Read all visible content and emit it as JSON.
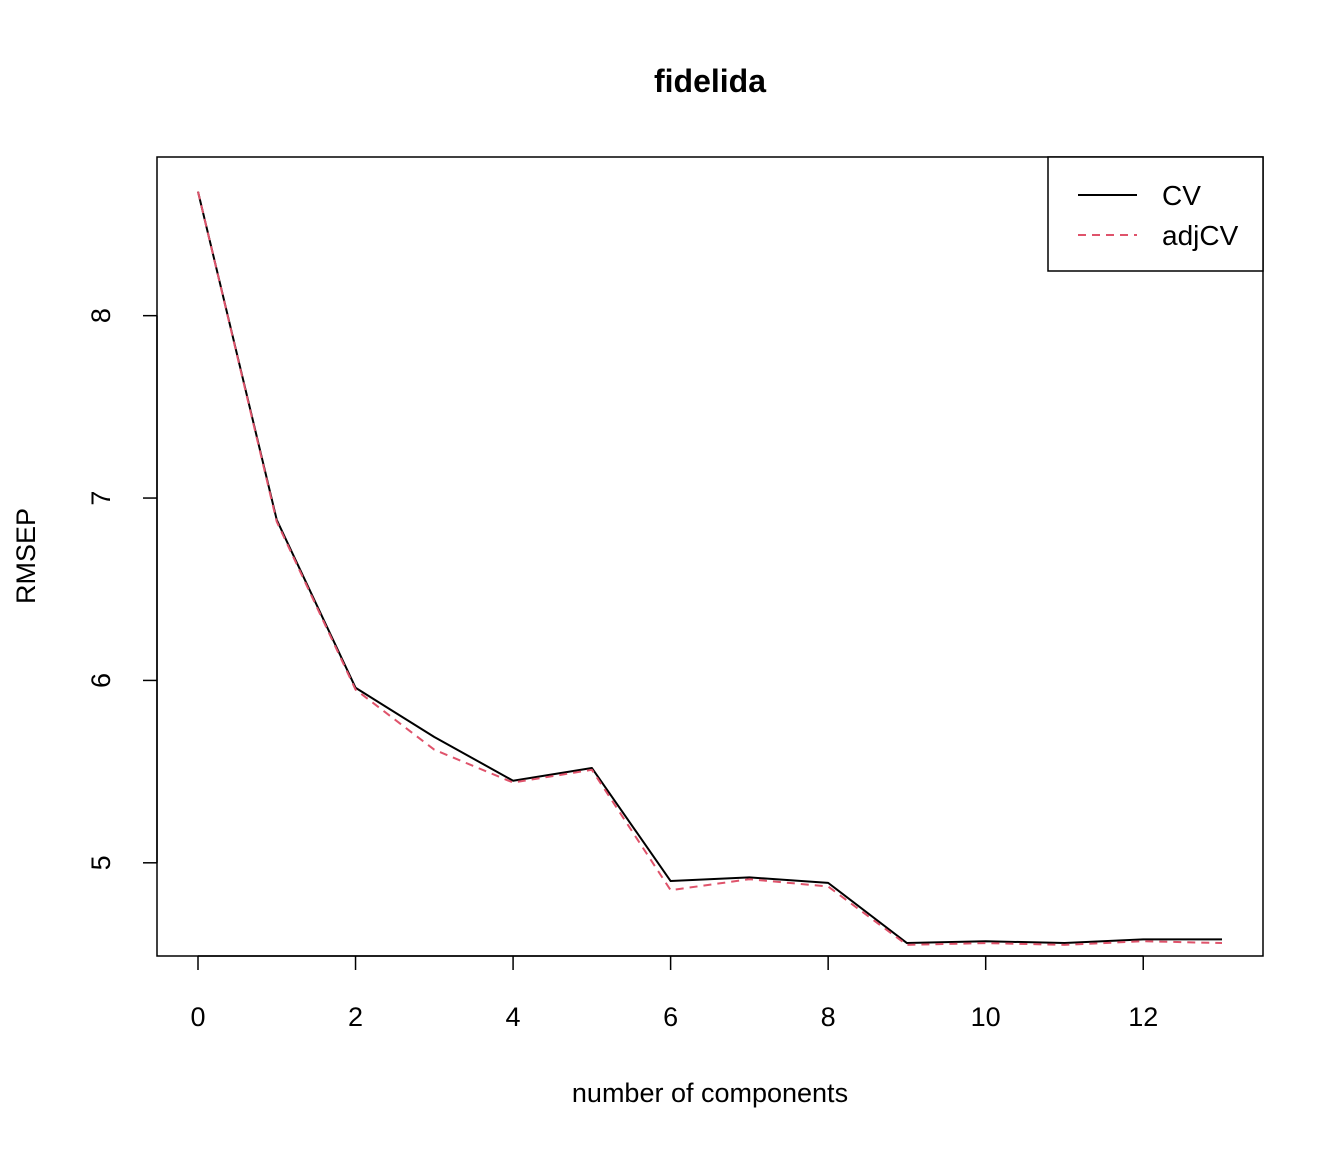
{
  "chart_data": {
    "type": "line",
    "title": "fidelida",
    "xlabel": "number of components",
    "ylabel": "RMSEP",
    "x": [
      0,
      1,
      2,
      3,
      4,
      5,
      6,
      7,
      8,
      9,
      10,
      11,
      12,
      13
    ],
    "series": [
      {
        "name": "CV",
        "color": "#000000",
        "dash": "solid",
        "values": [
          8.68,
          6.88,
          5.96,
          5.69,
          5.45,
          5.52,
          4.9,
          4.92,
          4.89,
          4.56,
          4.57,
          4.56,
          4.58,
          4.58
        ]
      },
      {
        "name": "adjCV",
        "color": "#DF536B",
        "dash": "dashed",
        "values": [
          8.68,
          6.87,
          5.95,
          5.62,
          5.44,
          5.51,
          4.85,
          4.91,
          4.87,
          4.55,
          4.56,
          4.55,
          4.57,
          4.56
        ]
      }
    ],
    "xlim": [
      0,
      13
    ],
    "ylim": [
      4.5,
      8.7
    ],
    "x_ticks": [
      0,
      2,
      4,
      6,
      8,
      10,
      12
    ],
    "y_ticks": [
      5,
      6,
      7,
      8
    ],
    "x_tick_labels": [
      "0",
      "2",
      "4",
      "6",
      "8",
      "10",
      "12"
    ],
    "y_tick_labels": [
      "5",
      "6",
      "7",
      "8"
    ],
    "legend": {
      "position": "top-right",
      "entries": [
        "CV",
        "adjCV"
      ]
    },
    "grid": false
  }
}
